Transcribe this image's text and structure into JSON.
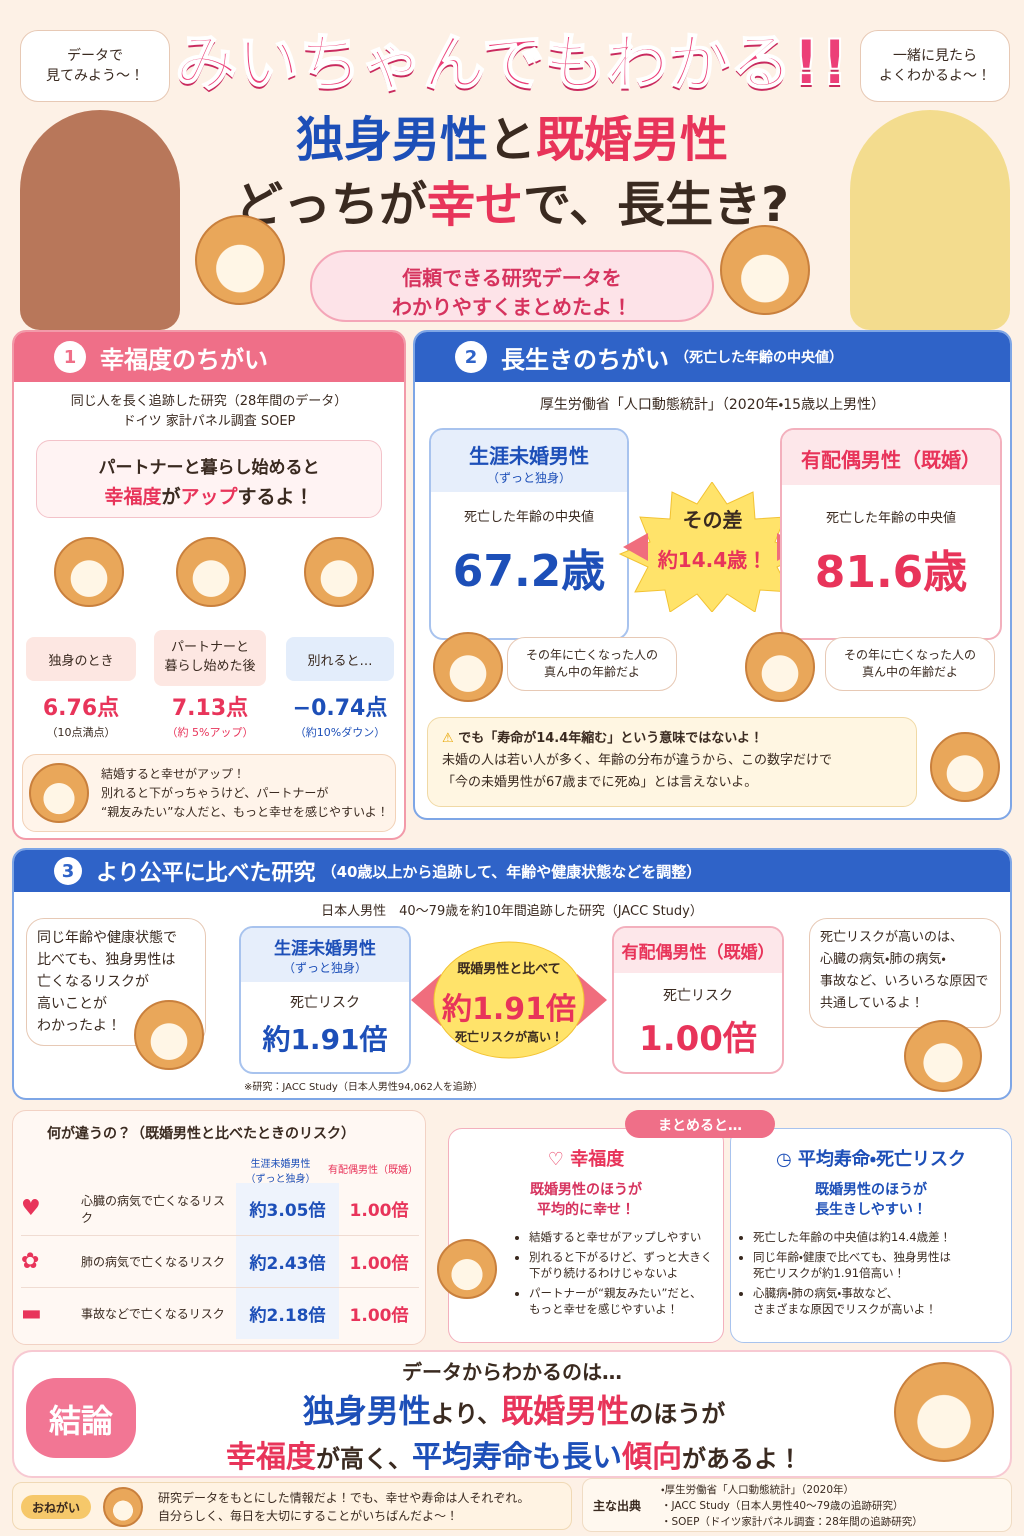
{
  "header": {
    "bubble_left": "データで\n見てみよう〜！",
    "bubble_right": "一緒に見たら\nよくわかるよ〜！",
    "title": "みいちゃんでもわかる!!",
    "subtitle_line1": [
      "独身男性",
      "と",
      "既婚男性"
    ],
    "subtitle_line2": [
      "どっちが",
      "幸せ",
      "で、長生き?"
    ],
    "banner": "信頼できる研究データを\nわかりやすくまとめたよ！"
  },
  "section1": {
    "number": "1",
    "title": "幸福度のちがい",
    "source": [
      "同じ人を長く追跡した研究（28年間のデータ）",
      "ドイツ 家計パネル調査 SOEP"
    ],
    "bubble_line1": "パートナーと暮らし始めると",
    "bubble_line2": [
      "幸福度",
      "が",
      "アップ",
      "するよ！"
    ],
    "cards": [
      {
        "label": "独身のとき",
        "value": "6.76点",
        "note": "（10点満点）"
      },
      {
        "label": "パートナーと\n暮らし始めた後",
        "value": "7.13点",
        "note": "（約 5%アップ）"
      },
      {
        "label": "別れると…",
        "value": "−0.74点",
        "note": "（約10%ダウン）"
      }
    ],
    "note": "結婚すると幸せがアップ！\n別れると下がっちゃうけど、パートナーが\n“親友みたい”な人だと、もっと幸せを感じやすいよ！"
  },
  "section2": {
    "number": "2",
    "title": "長生きのちがい",
    "subtitle": "（死亡した年齢の中央値）",
    "source": "厚生労働省「人口動態統計」（2020年・15歳以上男性）",
    "left": {
      "title": "生涯未婚男性",
      "sub": "（ずっと独身）",
      "label": "死亡した年齢の中央値",
      "value": "67.2歳"
    },
    "center": {
      "label": "その差",
      "value": "約14.4歳！"
    },
    "right": {
      "title": "有配偶男性（既婚）",
      "label": "死亡した年齢の中央値",
      "value": "81.6歳"
    },
    "bubble_left": "その年に亡くなった人の\n真ん中の年齢だよ",
    "bubble_right": "その年に亡くなった人の\n真ん中の年齢だよ",
    "warning": [
      "でも「寿命が14.4年縮む」という意味ではないよ！",
      "未婚の人は若い人が多く、年齢の分布が違うから、この数字だけで",
      "「今の未婚男性が67歳までに死ぬ」とは言えないよ。"
    ]
  },
  "section3": {
    "number": "3",
    "title": "より公平に比べた研究",
    "subtitle": "（40歳以上から追跡して、年齢や健康状態などを調整）",
    "source": "日本人男性　40〜79歳を約10年間追跡した研究（JACC Study）",
    "bubble_left": "同じ年齢や健康状態で\n比べても、独身男性は\n亡くなるリスクが\n高いことが\nわかったよ！",
    "left": {
      "title": "生涯未婚男性",
      "sub": "（ずっと独身）",
      "label": "死亡リスク",
      "value": "約1.91倍"
    },
    "center": [
      "既婚男性と比べて",
      "約1.91倍",
      "死亡リスクが高い！"
    ],
    "right": {
      "title": "有配偶男性（既婚）",
      "label": "死亡リスク",
      "value": "1.00倍"
    },
    "bubble_right": "死亡リスクが高いのは、\n心臓の病気・肺の病気・\n事故など、いろいろな原因で\n共通しているよ！",
    "footnote": "※研究：JACC Study（日本人男性94,062人を追跡）"
  },
  "table": {
    "title": "何が違うの？（既婚男性と比べたときのリスク）",
    "headers": [
      "生涯未婚男性\n（ずっと独身）",
      "有配偶男性（既婚）"
    ],
    "rows": [
      [
        "心臓の病気で亡くなるリスク",
        "約3.05倍",
        "1.00倍"
      ],
      [
        "肺の病気で亡くなるリスク",
        "約2.43倍",
        "1.00倍"
      ],
      [
        "事故などで亡くなるリスク",
        "約2.18倍",
        "1.00倍"
      ]
    ]
  },
  "summary": {
    "label": "まとめると…",
    "left": {
      "title": "幸福度",
      "headline": "既婚男性のほうが\n平均的に幸せ！",
      "items": [
        "結婚すると幸せがアップしやすい",
        "別れると下がるけど、ずっと大きく\n下がり続けるわけじゃないよ",
        "パートナーが“親友みたい”だと、\nもっと幸せを感じやすいよ！"
      ]
    },
    "right": {
      "title": "平均寿命・死亡リスク",
      "headline": "既婚男性のほうが\n長生きしやすい！",
      "items": [
        "死亡した年齢の中央値は約14.4歳差！",
        "同じ年齢・健康で比べても、独身男性は\n死亡リスクが約1.91倍高い！",
        "心臓病・肺の病気・事故など、\nさまざまな原因でリスクが高いよ！"
      ]
    }
  },
  "conclusion": {
    "lead": "データからわかるのは…",
    "badge": "結論",
    "line1": [
      "独身男性",
      "より、",
      "既婚男性",
      "のほうが"
    ],
    "line2": [
      "幸福度",
      "が高く、",
      "平均寿命も長い",
      "傾向",
      "があるよ！"
    ]
  },
  "footer": {
    "label": "おねがい",
    "message": "研究データをもとにした情報だよ！でも、幸せや寿命は人それぞれ。\n自分らしく、毎日を大切にすることがいちばんだよ〜！",
    "sources_label": "主な出典",
    "sources": [
      "・厚生労働省「人口動態統計」（2020年）",
      "・JACC Study（日本人男性40〜79歳の追跡研究）",
      "・SOEP（ドイツ家計パネル調査：28年間の追跡研究）"
    ]
  }
}
